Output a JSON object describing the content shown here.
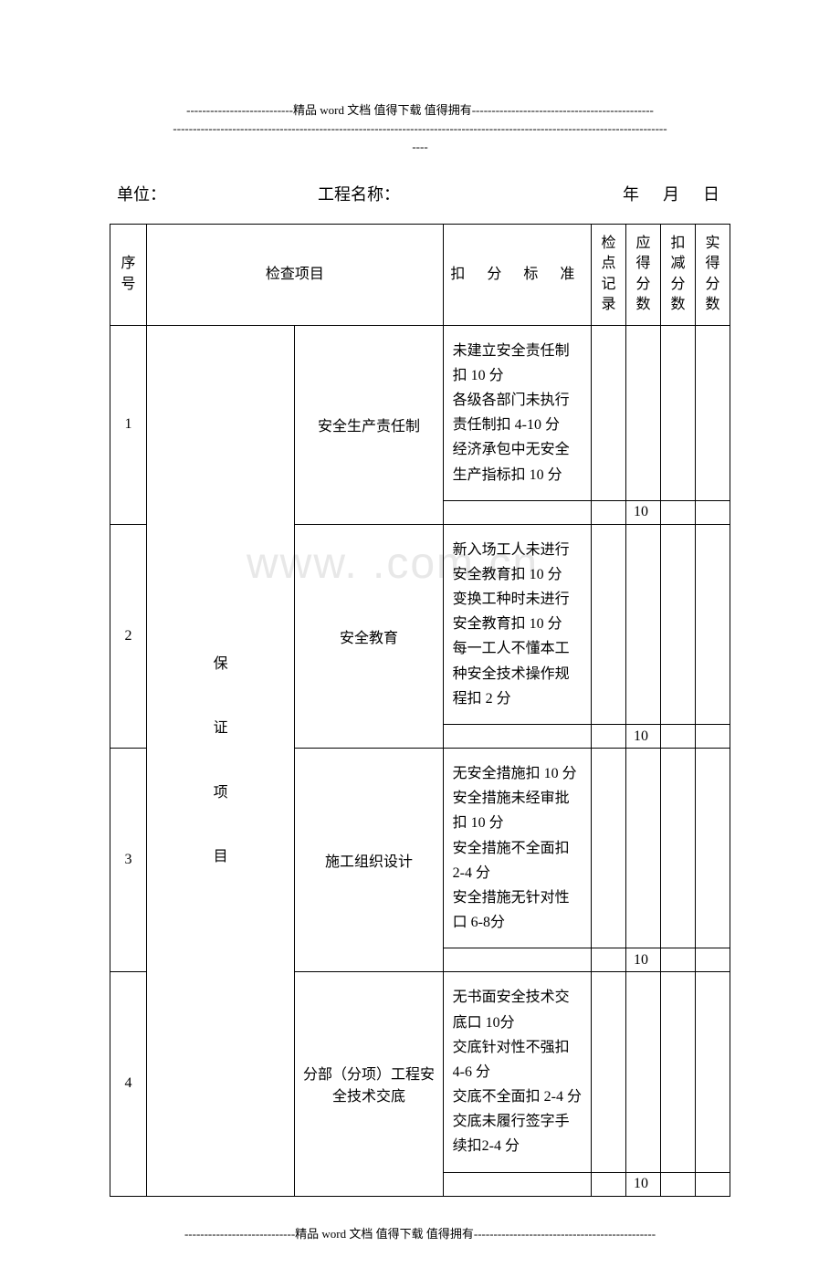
{
  "header": {
    "line1": "---------------------------精品 word 文档  值得下载  值得拥有----------------------------------------------",
    "line2": "-----------------------------------------------------------------------------------------------------------------------------",
    "line3": "----"
  },
  "footer": {
    "line1": "----------------------------精品 word 文档  值得下载  值得拥有----------------------------------------------"
  },
  "watermark": "www.       .com.cn",
  "formLine": {
    "unitLabel": "单位：",
    "projLabel": "工程名称：",
    "yearLabel": "年",
    "monthLabel": "月",
    "dayLabel": "日"
  },
  "tableHeader": {
    "seq": "序号",
    "item": "检查项目",
    "std": "扣  分  标  准",
    "rec": "检点记录",
    "due": "应得分数",
    "deduct": "扣减分数",
    "actual": "实得分数"
  },
  "category": "保\n\n证\n\n项\n\n目",
  "rows": [
    {
      "seq": "1",
      "item": "安全生产责任制",
      "std": "未建立安全责任制扣 10 分\n各级各部门未执行责任制扣 4-10 分\n经济承包中无安全生产指标扣 10 分",
      "due": "10"
    },
    {
      "seq": "2",
      "item": "安全教育",
      "std": "新入场工人未进行安全教育扣 10 分\n变换工种时未进行安全教育扣 10 分\n每一工人不懂本工种安全技术操作规程扣 2 分",
      "due": "10"
    },
    {
      "seq": "3",
      "item": "施工组织设计",
      "std": "无安全措施扣 10 分\n安全措施未经审批扣 10 分\n安全措施不全面扣 2-4 分\n安全措施无针对性口 6-8分",
      "due": "10"
    },
    {
      "seq": "4",
      "item": "分部（分项）工程安全技术交底",
      "std": "无书面安全技术交底口 10分\n交底针对性不强扣 4-6 分\n交底不全面扣 2-4 分\n交底未履行签字手续扣2-4 分",
      "due": "10"
    }
  ]
}
